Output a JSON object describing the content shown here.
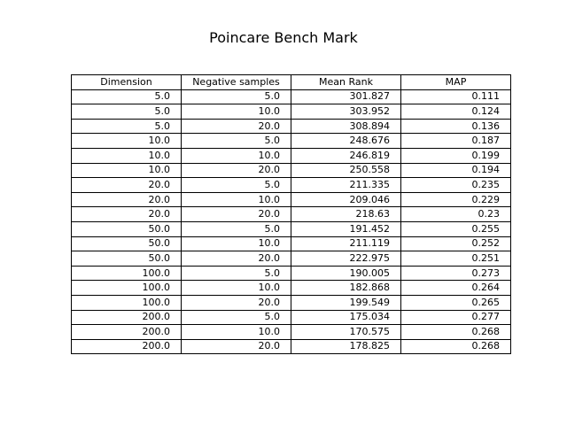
{
  "chart_data": {
    "type": "table",
    "title": "Poincare Bench Mark",
    "columns": [
      "Dimension",
      "Negative samples",
      "Mean Rank",
      "MAP"
    ],
    "rows": [
      [
        "5.0",
        "5.0",
        "301.827",
        "0.111"
      ],
      [
        "5.0",
        "10.0",
        "303.952",
        "0.124"
      ],
      [
        "5.0",
        "20.0",
        "308.894",
        "0.136"
      ],
      [
        "10.0",
        "5.0",
        "248.676",
        "0.187"
      ],
      [
        "10.0",
        "10.0",
        "246.819",
        "0.199"
      ],
      [
        "10.0",
        "20.0",
        "250.558",
        "0.194"
      ],
      [
        "20.0",
        "5.0",
        "211.335",
        "0.235"
      ],
      [
        "20.0",
        "10.0",
        "209.046",
        "0.229"
      ],
      [
        "20.0",
        "20.0",
        "218.63",
        "0.23"
      ],
      [
        "50.0",
        "5.0",
        "191.452",
        "0.255"
      ],
      [
        "50.0",
        "10.0",
        "211.119",
        "0.252"
      ],
      [
        "50.0",
        "20.0",
        "222.975",
        "0.251"
      ],
      [
        "100.0",
        "5.0",
        "190.005",
        "0.273"
      ],
      [
        "100.0",
        "10.0",
        "182.868",
        "0.264"
      ],
      [
        "100.0",
        "20.0",
        "199.549",
        "0.265"
      ],
      [
        "200.0",
        "5.0",
        "175.034",
        "0.277"
      ],
      [
        "200.0",
        "10.0",
        "170.575",
        "0.268"
      ],
      [
        "200.0",
        "20.0",
        "178.825",
        "0.268"
      ]
    ]
  }
}
